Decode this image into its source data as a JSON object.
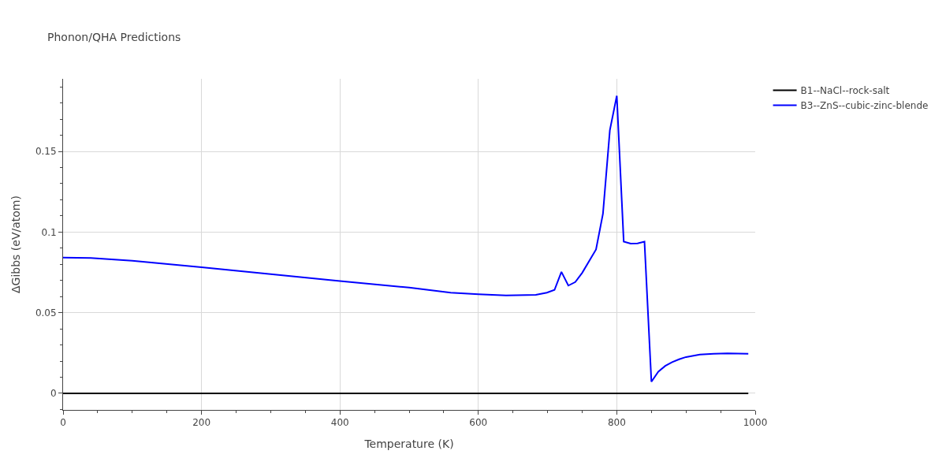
{
  "chart_data": {
    "type": "line",
    "title": "Phonon/QHA Predictions",
    "xlabel": "Temperature (K)",
    "ylabel": "ΔGibbs (eV/atom)",
    "xlim": [
      0,
      1000
    ],
    "xticks": [
      0,
      200,
      400,
      600,
      800,
      1000
    ],
    "ylim": [
      -0.0103,
      0.195
    ],
    "yticks": [
      0,
      0.05,
      0.1,
      0.15
    ],
    "grid": true,
    "legend": "top right",
    "marker": "none",
    "line_style": "solid",
    "series": [
      {
        "name": "B1--NaCl--rock-salt",
        "color": "#000000",
        "x": [
          0,
          990
        ],
        "values": [
          0,
          0
        ]
      },
      {
        "name": "B3--ZnS--cubic-zinc-blende",
        "color": "#0000ff",
        "x": [
          0,
          40,
          100,
          200,
          300,
          400,
          500,
          560,
          600,
          640,
          670,
          683,
          699,
          710,
          720,
          730,
          740,
          750,
          770,
          780,
          790,
          800,
          810,
          820,
          830,
          840,
          850,
          860,
          870,
          880,
          890,
          900,
          920,
          940,
          960,
          975,
          990
        ],
        "values": [
          0.0842,
          0.0839,
          0.0822,
          0.0782,
          0.0739,
          0.0696,
          0.0656,
          0.0624,
          0.0614,
          0.0607,
          0.0609,
          0.0611,
          0.0624,
          0.0641,
          0.0753,
          0.0668,
          0.069,
          0.0747,
          0.0892,
          0.1113,
          0.1632,
          0.1845,
          0.0941,
          0.0928,
          0.093,
          0.0941,
          0.0072,
          0.0134,
          0.017,
          0.0193,
          0.0211,
          0.0225,
          0.024,
          0.0245,
          0.0248,
          0.0247,
          0.0245
        ]
      }
    ]
  }
}
